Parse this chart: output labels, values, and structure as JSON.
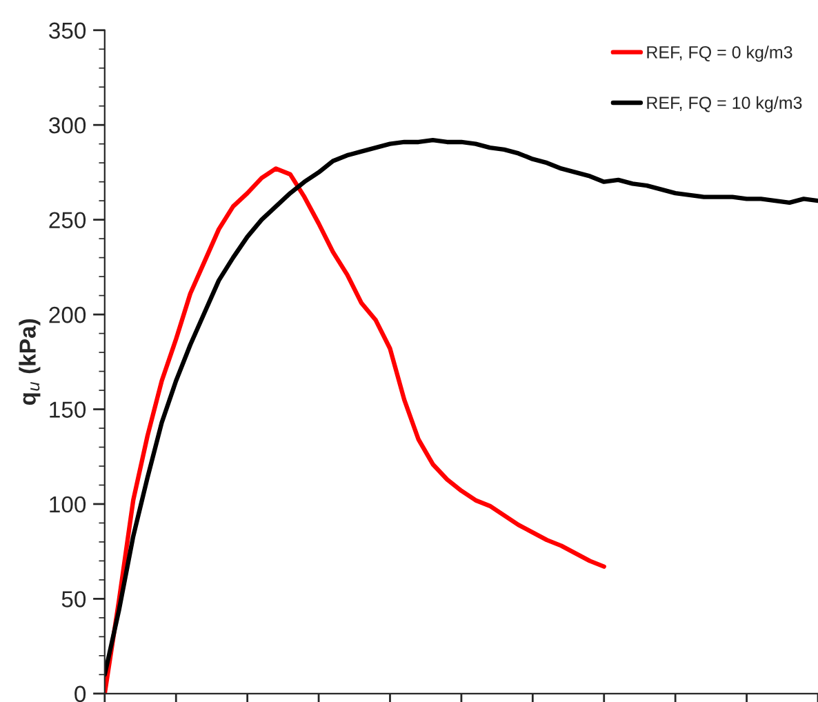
{
  "chart_data": {
    "type": "line",
    "ylabel": "q$_{u}$ (kPa)",
    "categories": [
      null,
      null,
      null,
      null,
      null,
      null,
      null,
      null,
      null,
      null,
      null,
      null,
      null,
      null,
      null,
      null,
      null,
      null,
      null,
      null,
      null,
      null,
      null,
      null,
      null,
      null,
      null,
      null,
      null,
      null,
      null,
      null,
      null,
      null,
      null,
      null,
      null,
      null,
      null,
      null,
      null,
      null,
      null,
      null,
      null,
      null,
      null,
      null,
      null,
      null,
      null
    ],
    "series": [
      {
        "name": "REF, FQ = 0 kg/m3",
        "color": "#ff0000",
        "values": [
          0,
          49,
          102,
          136,
          165,
          187,
          211,
          228,
          245,
          257,
          264,
          272,
          277,
          274,
          262,
          248,
          233,
          221,
          206,
          197,
          182,
          155,
          134,
          121,
          113,
          107,
          102,
          99,
          94,
          89,
          85,
          81,
          78,
          74,
          70,
          67,
          null,
          null,
          null,
          null,
          null,
          null,
          null,
          null,
          null,
          null,
          null,
          null,
          null,
          null,
          null
        ]
      },
      {
        "name": "REF, FQ = 10 kg/m3",
        "color": "#000000",
        "values": [
          10,
          44,
          83,
          114,
          143,
          165,
          184,
          201,
          218,
          230,
          241,
          250,
          257,
          264,
          270,
          275,
          281,
          284,
          286,
          288,
          290,
          291,
          291,
          292,
          291,
          291,
          290,
          288,
          287,
          285,
          282,
          280,
          277,
          275,
          273,
          270,
          271,
          269,
          268,
          266,
          264,
          263,
          262,
          262,
          262,
          261,
          261,
          260,
          259,
          261,
          260
        ]
      }
    ],
    "ylim": [
      0,
      350
    ],
    "yticks": [
      0,
      50,
      100,
      150,
      200,
      250,
      300,
      350
    ],
    "tick_labels": "y",
    "legend": "top right",
    "grid": false,
    "marker": "none",
    "line_style": "solid"
  }
}
